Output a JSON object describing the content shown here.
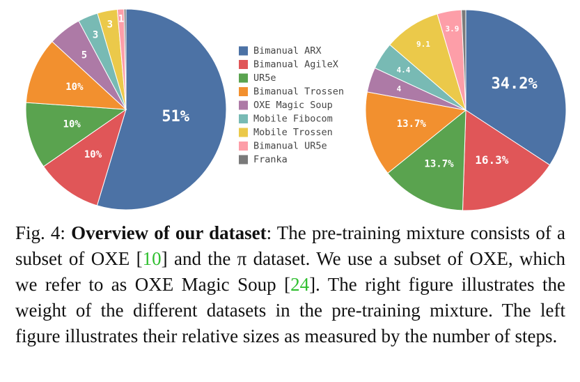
{
  "chart_data": [
    {
      "type": "pie",
      "categories": [
        "Bimanual ARX",
        "Bimanual AgileX",
        "UR5e",
        "Bimanual Trossen",
        "OXE Magic Soup",
        "Mobile Fibocom",
        "Mobile Trossen",
        "Bimanual UR5e",
        "Franka"
      ],
      "values": [
        51,
        10,
        10,
        10,
        5,
        3,
        3,
        1,
        0.3
      ],
      "slice_labels": [
        "51%",
        "10%",
        "10%",
        "10%",
        "5",
        "3",
        "3",
        "1",
        ""
      ]
    },
    {
      "type": "pie",
      "categories": [
        "Bimanual ARX",
        "Bimanual AgileX",
        "UR5e",
        "Bimanual Trossen",
        "OXE Magic Soup",
        "Mobile Fibocom",
        "Mobile Trossen",
        "Bimanual UR5e",
        "Franka"
      ],
      "values": [
        34.2,
        16.3,
        13.7,
        13.7,
        4,
        4.4,
        9.1,
        3.9,
        0.7
      ],
      "slice_labels": [
        "34.2%",
        "16.3%",
        "13.7%",
        "13.7%",
        "4",
        "4.4",
        "9.1",
        "3.9",
        ""
      ]
    }
  ],
  "legend": {
    "items": [
      {
        "label": "Bimanual ARX",
        "color": "#4c72a5"
      },
      {
        "label": "Bimanual AgileX",
        "color": "#e05658"
      },
      {
        "label": "UR5e",
        "color": "#5aa34f"
      },
      {
        "label": "Bimanual Trossen",
        "color": "#f2902f"
      },
      {
        "label": "OXE Magic Soup",
        "color": "#ad7aa6"
      },
      {
        "label": "Mobile Fibocom",
        "color": "#78bab4"
      },
      {
        "label": "Mobile Trossen",
        "color": "#ebc94a"
      },
      {
        "label": "Bimanual UR5e",
        "color": "#fd9ea8"
      },
      {
        "label": "Franka",
        "color": "#7a7a7a"
      }
    ]
  },
  "caption": {
    "fig_label": "Fig. 4:",
    "bold_title": "Overview of our dataset",
    "part1": ": The pre-training mixture consists of a subset of OXE [",
    "ref1": "10",
    "part2": "] and the π dataset. We use a subset of OXE, which we refer to as OXE Magic Soup [",
    "ref2": "24",
    "part3": "]. The right figure illustrates the weight of the different datasets in the pre-training mixture. The left figure illustrates their relative sizes as measured by the number of steps."
  }
}
